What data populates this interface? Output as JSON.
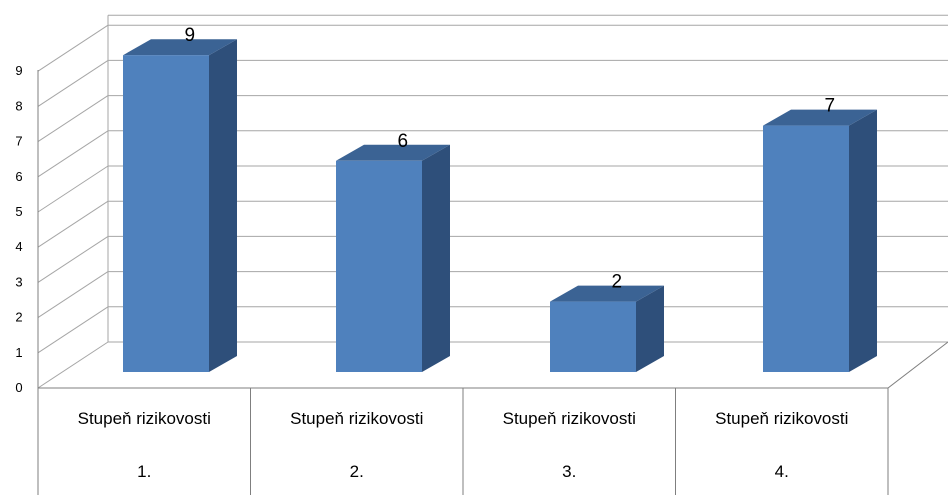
{
  "chart_data": {
    "type": "bar",
    "style": "3d-column",
    "categories": [
      {
        "line1": "Stupeň rizikovosti",
        "line2": "1."
      },
      {
        "line1": "Stupeň rizikovosti",
        "line2": "2."
      },
      {
        "line1": "Stupeň rizikovosti",
        "line2": "3."
      },
      {
        "line1": "Stupeň rizikovosti",
        "line2": "4."
      }
    ],
    "values": [
      9,
      6,
      2,
      7
    ],
    "data_labels": [
      "9",
      "6",
      "2",
      "7"
    ],
    "yticks": [
      "0",
      "1",
      "2",
      "3",
      "4",
      "5",
      "6",
      "7",
      "8",
      "9"
    ],
    "ylim": [
      0,
      9
    ],
    "grid": true,
    "legend": "none",
    "colors": {
      "bar_front": "#4F81BD",
      "bar_top": "#3B6394",
      "bar_side": "#2E4F7A",
      "gridline": "#A6A6A6",
      "axis": "#7F7F7F",
      "text": "#000000"
    }
  }
}
